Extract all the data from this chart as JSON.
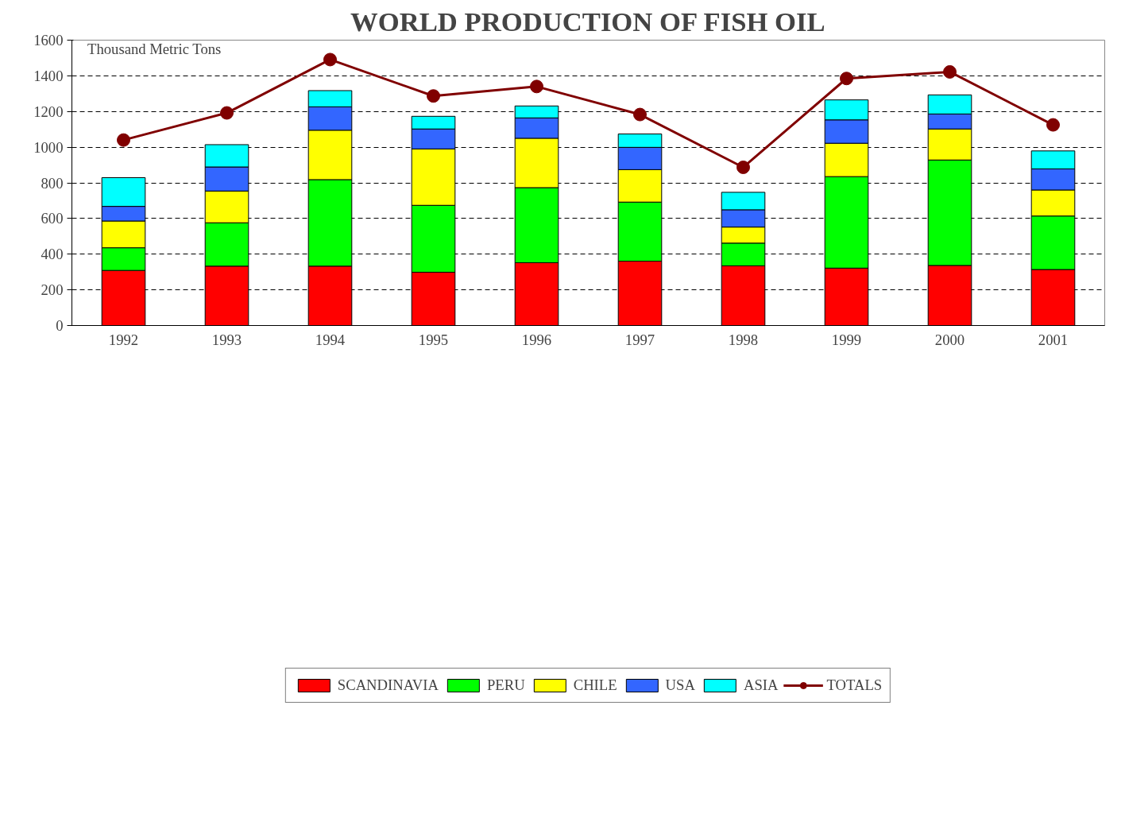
{
  "chart_data": {
    "type": "bar",
    "title": "WORLD PRODUCTION OF FISH OIL",
    "stacked": true,
    "categories": [
      "1992",
      "1993",
      "1994",
      "1995",
      "1996",
      "1997",
      "1998",
      "1999",
      "2000",
      "2001"
    ],
    "series": [
      {
        "name": "SCANDINAVIA",
        "color": "#ff0000",
        "values": [
          309,
          333,
          333,
          299,
          352,
          361,
          335,
          322,
          337,
          314
        ]
      },
      {
        "name": "PERU",
        "color": "#00ff00",
        "values": [
          127,
          243,
          485,
          375,
          421,
          331,
          127,
          513,
          591,
          300
        ]
      },
      {
        "name": "CHILE",
        "color": "#ffff00",
        "values": [
          150,
          178,
          277,
          316,
          277,
          182,
          90,
          187,
          174,
          146
        ]
      },
      {
        "name": "USA",
        "color": "#3366ff",
        "values": [
          82,
          135,
          131,
          112,
          114,
          125,
          97,
          131,
          84,
          118
        ]
      },
      {
        "name": "ASIA",
        "color": "#00ffff",
        "values": [
          161,
          125,
          91,
          71,
          67,
          75,
          98,
          112,
          107,
          101
        ]
      },
      {
        "name": "TOTALS",
        "type": "line",
        "color": "#800000",
        "marker": "circle",
        "values": [
          1040,
          1192,
          1491,
          1287,
          1340,
          1183,
          887,
          1385,
          1422,
          1125
        ]
      }
    ],
    "ylim": [
      0,
      1600
    ],
    "yticks": [
      0,
      200,
      400,
      600,
      800,
      1000,
      1200,
      1400,
      1600
    ],
    "grid": "y",
    "legend": "bottom",
    "annotations": [
      "Thousand Metric Tons"
    ]
  }
}
